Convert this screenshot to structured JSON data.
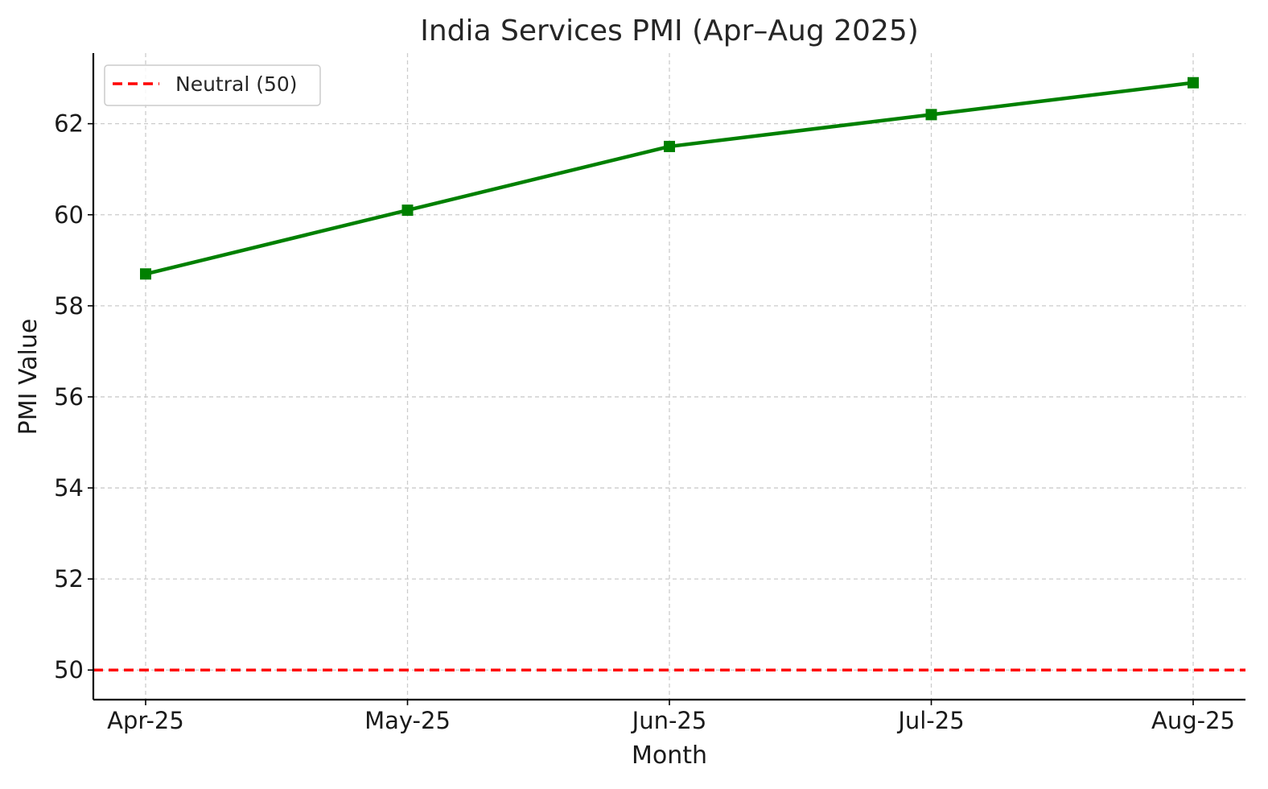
{
  "chart_data": {
    "type": "line",
    "title": "India Services PMI (Apr–Aug 2025)",
    "xlabel": "Month",
    "ylabel": "PMI Value",
    "categories": [
      "Apr-25",
      "May-25",
      "Jun-25",
      "Jul-25",
      "Aug-25"
    ],
    "series": [
      {
        "values": [
          58.7,
          60.1,
          61.5,
          62.2,
          62.9
        ],
        "color": "#008000",
        "marker": "square"
      }
    ],
    "reference_line": {
      "label": "Neutral (50)",
      "value": 50,
      "color": "#ff0000",
      "style": "dashed"
    },
    "yticks": [
      50,
      52,
      54,
      56,
      58,
      60,
      62
    ],
    "ylim": [
      49.35,
      63.55
    ],
    "grid": true,
    "legend_position": "top-left"
  }
}
